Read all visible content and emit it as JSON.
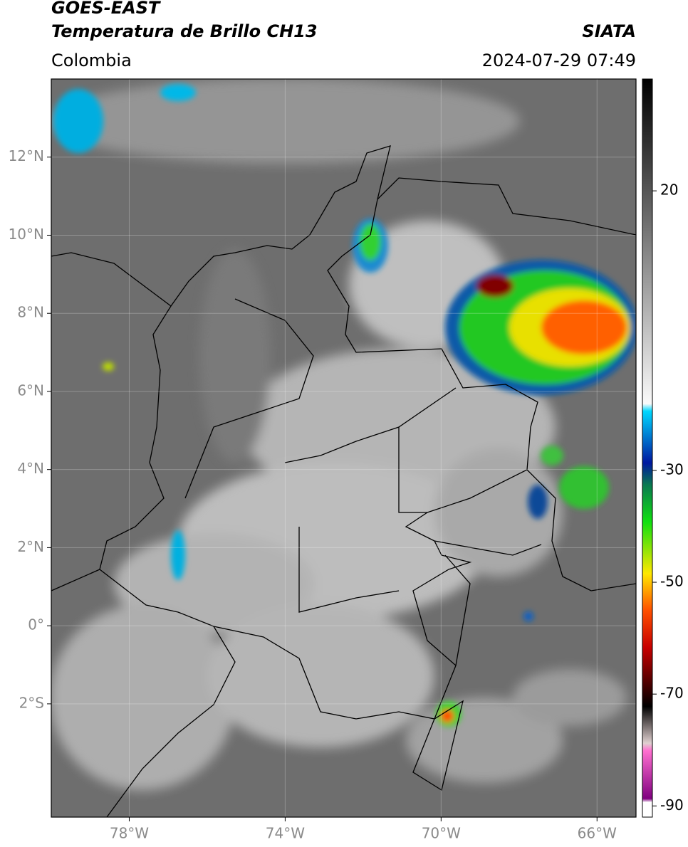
{
  "header": {
    "title": "GOES-EAST",
    "subtitle": "Temperatura de Brillo CH13",
    "region": "Colombia",
    "source": "SIATA",
    "datetime": "2024-07-29 07:49"
  },
  "map": {
    "xlim": [
      -80,
      -65
    ],
    "ylim": [
      -4.9,
      14
    ],
    "xticks": [
      {
        "value": -78,
        "label": "78°W"
      },
      {
        "value": -74,
        "label": "74°W"
      },
      {
        "value": -70,
        "label": "70°W"
      },
      {
        "value": -66,
        "label": "66°W"
      }
    ],
    "yticks": [
      {
        "value": 12,
        "label": "12°N"
      },
      {
        "value": 10,
        "label": "10°N"
      },
      {
        "value": 8,
        "label": "8°N"
      },
      {
        "value": 6,
        "label": "6°N"
      },
      {
        "value": 4,
        "label": "4°N"
      },
      {
        "value": 2,
        "label": "2°N"
      },
      {
        "value": 0,
        "label": "0°"
      },
      {
        "value": -2,
        "label": "2°S"
      }
    ],
    "grid": true
  },
  "colorbar": {
    "lim": [
      -92,
      40
    ],
    "ticks": [
      20,
      -30,
      -50,
      -70,
      -90
    ]
  }
}
